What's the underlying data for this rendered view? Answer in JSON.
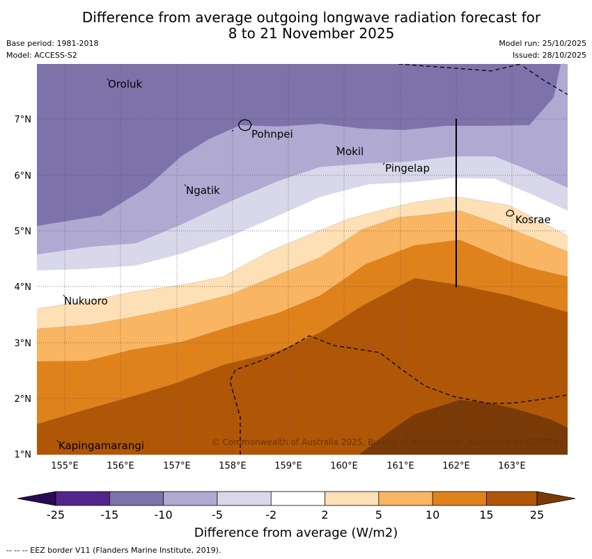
{
  "title_line1": "Difference from average outgoing longwave radiation forecast for",
  "title_line2": "8 to 21 November 2025",
  "base_period": "Base period: 1981-2018",
  "model": "Model: ACCESS-S2",
  "model_run": "Model run: 25/10/2025",
  "issued": "Issued: 28/10/2025",
  "x_ticks": [
    "155°E",
    "156°E",
    "157°E",
    "158°E",
    "159°E",
    "160°E",
    "161°E",
    "162°E",
    "163°E"
  ],
  "y_ticks": [
    "1°N",
    "2°N",
    "3°N",
    "4°N",
    "5°N",
    "6°N",
    "7°N"
  ],
  "places": {
    "oroluk": "Oroluk",
    "pohnpei": "Pohnpei",
    "mokil": "Mokil",
    "pingelap": "Pingelap",
    "ngatik": "Ngatik",
    "kosrae": "Kosrae",
    "nukuoro": "Nukuoro",
    "kapingamarangi": "Kapingamarangi"
  },
  "copyright": "© Commonwealth of Australia 2025, Bureau of Meteorology, supported by COSPPac",
  "colorbar": {
    "ticks": [
      "-25",
      "-15",
      "-10",
      "-5",
      "-2",
      "2",
      "5",
      "10",
      "15",
      "25"
    ],
    "colors": [
      "#290a55",
      "#53268b",
      "#7e72ab",
      "#b0a9d1",
      "#d8d8ea",
      "#ffffff",
      "#fde0b6",
      "#f9b561",
      "#e0821b",
      "#b05707",
      "#7a3a08"
    ],
    "label": "Difference from average (W/m2)"
  },
  "eez_note": "-- -- -- EEZ border V11 (Flanders Marine Institute, 2019)."
}
